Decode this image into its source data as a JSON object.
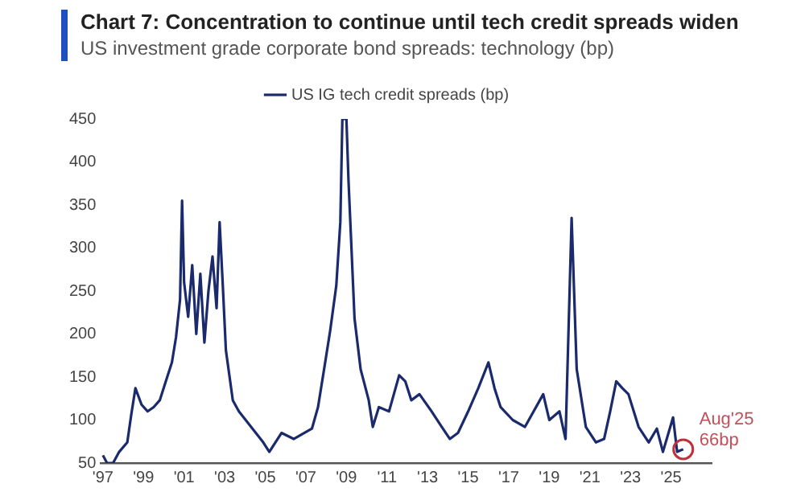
{
  "chart_data": {
    "type": "line",
    "title": "Chart 7: Concentration to continue until tech credit spreads widen",
    "subtitle": "US investment grade corporate bond spreads: technology (bp)",
    "x": [
      1997.0,
      1997.2,
      1997.5,
      1997.8,
      1998.2,
      1998.4,
      1998.6,
      1998.9,
      1999.2,
      1999.5,
      1999.8,
      2000.1,
      2000.4,
      2000.6,
      2000.8,
      2000.9,
      2001.0,
      2001.2,
      2001.4,
      2001.6,
      2001.8,
      2002.0,
      2002.2,
      2002.4,
      2002.6,
      2002.75,
      2002.9,
      2003.06,
      2003.4,
      2003.7,
      2004.3,
      2004.9,
      2005.2,
      2005.8,
      2006.4,
      2007.3,
      2007.6,
      2007.9,
      2008.2,
      2008.5,
      2008.7,
      2008.8,
      2009.0,
      2009.1,
      2009.4,
      2009.7,
      2010.1,
      2010.3,
      2010.6,
      2011.1,
      2011.6,
      2011.9,
      2012.2,
      2012.6,
      2013.2,
      2013.7,
      2014.1,
      2014.5,
      2015.0,
      2015.5,
      2016.0,
      2016.3,
      2016.6,
      2017.2,
      2017.8,
      2018.7,
      2019.0,
      2019.5,
      2019.8,
      2020.1,
      2020.35,
      2020.8,
      2021.3,
      2021.7,
      2022.0,
      2022.3,
      2022.6,
      2022.9,
      2023.4,
      2023.9,
      2024.3,
      2024.6,
      2025.1,
      2025.3,
      2025.6
    ],
    "series": [
      {
        "name": "US IG tech credit spreads (bp)",
        "color": "#1a2a6c",
        "values": [
          59,
          50,
          50,
          63,
          74,
          107,
          137,
          118,
          110,
          115,
          123,
          145,
          167,
          196,
          240,
          355,
          260,
          220,
          280,
          200,
          270,
          190,
          250,
          290,
          230,
          330,
          260,
          181,
          123,
          110,
          92,
          74,
          63,
          85,
          78,
          90,
          115,
          159,
          204,
          256,
          330,
          450,
          450,
          380,
          218,
          159,
          123,
          92,
          115,
          110,
          152,
          145,
          123,
          130,
          110,
          92,
          78,
          85,
          110,
          137,
          167,
          137,
          115,
          100,
          92,
          130,
          100,
          110,
          78,
          335,
          159,
          92,
          74,
          78,
          110,
          145,
          137,
          130,
          92,
          74,
          90,
          63,
          103,
          63,
          66
        ]
      }
    ],
    "xlim": [
      1996.9,
      2027
    ],
    "xticks": [
      {
        "value": 1997,
        "label": "'97"
      },
      {
        "value": 1999,
        "label": "'99"
      },
      {
        "value": 2001,
        "label": "'01"
      },
      {
        "value": 2003,
        "label": "'03"
      },
      {
        "value": 2005,
        "label": "'05"
      },
      {
        "value": 2007,
        "label": "'07"
      },
      {
        "value": 2009,
        "label": "'09"
      },
      {
        "value": 2011,
        "label": "'11"
      },
      {
        "value": 2013,
        "label": "'13"
      },
      {
        "value": 2015,
        "label": "'15"
      },
      {
        "value": 2017,
        "label": "'17"
      },
      {
        "value": 2019,
        "label": "'19"
      },
      {
        "value": 2021,
        "label": "'21"
      },
      {
        "value": 2023,
        "label": "'23"
      },
      {
        "value": 2025,
        "label": "'25"
      }
    ],
    "ylim": [
      50,
      450
    ],
    "yticks": [
      50,
      100,
      150,
      200,
      250,
      300,
      350,
      400,
      450
    ],
    "grid": false,
    "legend": "top",
    "marker": "none",
    "line_style": "solid",
    "annotations": [
      {
        "text": "Aug'25\n66bp",
        "x": 2025.6,
        "y": 66
      }
    ]
  }
}
